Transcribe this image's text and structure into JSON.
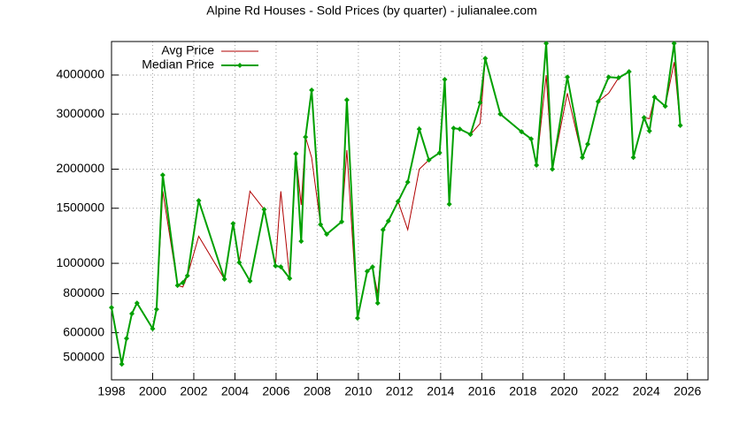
{
  "chart_data": {
    "type": "line",
    "title": "Alpine Rd Houses - Sold Prices (by quarter) - julianalee.com",
    "x": [
      1998.0,
      1998.5,
      1998.73,
      1998.99,
      1999.24,
      2000.0,
      2000.19,
      2000.49,
      2001.21,
      2001.47,
      2001.69,
      2002.24,
      2003.49,
      2003.91,
      2004.21,
      2004.73,
      2005.42,
      2005.97,
      2006.23,
      2006.66,
      2006.96,
      2007.22,
      2007.43,
      2007.73,
      2008.16,
      2008.46,
      2009.19,
      2009.44,
      2009.96,
      2010.43,
      2010.69,
      2010.94,
      2011.2,
      2011.46,
      2011.93,
      2012.4,
      2012.96,
      2013.43,
      2013.95,
      2014.2,
      2014.42,
      2014.63,
      2014.93,
      2015.45,
      2015.92,
      2016.17,
      2016.9,
      2017.93,
      2018.4,
      2018.66,
      2019.13,
      2019.43,
      2020.16,
      2020.89,
      2021.15,
      2021.66,
      2022.17,
      2022.65,
      2023.16,
      2023.37,
      2023.89,
      2024.15,
      2024.4,
      2024.92,
      2025.35,
      2025.65
    ],
    "series": [
      {
        "name": "Avg Price",
        "color": "#b00000",
        "values": [
          722000,
          476000,
          575000,
          690000,
          746000,
          618000,
          713000,
          1700000,
          850000,
          840000,
          913000,
          1220000,
          890000,
          1340000,
          1006000,
          1700000,
          1487000,
          981000,
          1700000,
          895000,
          2240000,
          1536000,
          2535000,
          2180000,
          1331000,
          1239000,
          1358000,
          2300000,
          668000,
          943000,
          974000,
          800000,
          1280000,
          1366000,
          1577000,
          1280000,
          2000000,
          2140000,
          2256000,
          3870000,
          1546000,
          2705000,
          2688000,
          2584000,
          2800000,
          4520000,
          3000000,
          2635000,
          2500000,
          2060000,
          4000000,
          2000000,
          3500000,
          2180000,
          2405000,
          3290000,
          3500000,
          3920000,
          4100000,
          2180000,
          2925000,
          2900000,
          3400000,
          3180000,
          4400000,
          2760000
        ]
      },
      {
        "name": "Median Price",
        "color": "#00a000",
        "values": [
          722000,
          476000,
          575000,
          690000,
          746000,
          618000,
          713000,
          1916000,
          850000,
          867000,
          913000,
          1587000,
          890000,
          1340000,
          1006000,
          878000,
          1487000,
          981000,
          974000,
          895000,
          2240000,
          1176000,
          2535000,
          3580000,
          1331000,
          1239000,
          1358000,
          3330000,
          668000,
          943000,
          974000,
          746000,
          1280000,
          1366000,
          1577000,
          1819000,
          2688000,
          2140000,
          2256000,
          3870000,
          1546000,
          2705000,
          2688000,
          2584000,
          3266000,
          4520000,
          3000000,
          2635000,
          2500000,
          2060000,
          5050000,
          2000000,
          3940000,
          2180000,
          2405000,
          3290000,
          3940000,
          3920000,
          4100000,
          2180000,
          2925000,
          2650000,
          3400000,
          3180000,
          5050000,
          2760000
        ]
      }
    ],
    "xlim": [
      1998,
      2027
    ],
    "xticks": [
      1998,
      2000,
      2002,
      2004,
      2006,
      2008,
      2010,
      2012,
      2014,
      2016,
      2018,
      2020,
      2022,
      2024,
      2026
    ],
    "ylim": [
      424000,
      5120000
    ],
    "yticks": [
      500000,
      600000,
      800000,
      1000000,
      1500000,
      2000000,
      3000000,
      4000000
    ],
    "logscale_y": true,
    "grid": true,
    "legend": "top-left"
  }
}
